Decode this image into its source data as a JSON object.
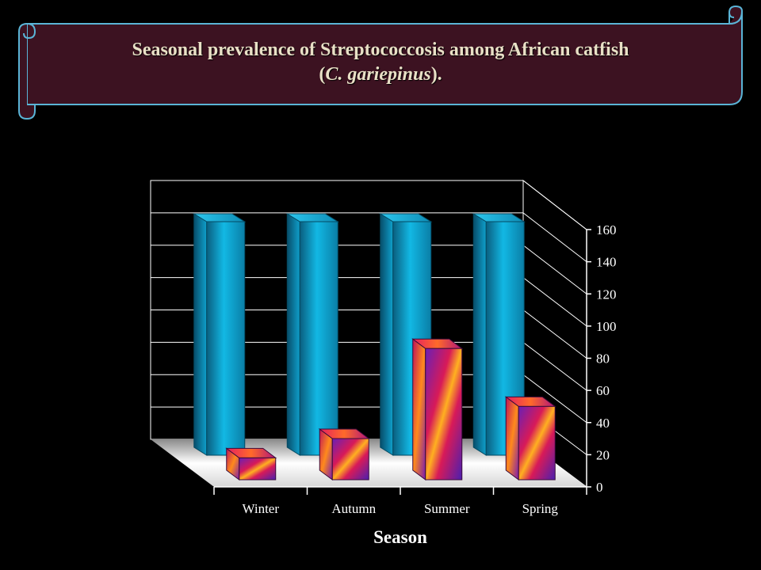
{
  "title": {
    "line1": "Seasonal prevalence of Streptococcosis among African catfish",
    "line2_open": "(",
    "line2_species": "C. gariepinus",
    "line2_close": ")."
  },
  "chart_data": {
    "type": "bar",
    "title": "Seasonal prevalence of Streptococcosis among African catfish (C. gariepinus).",
    "xlabel": "Season",
    "ylabel": "",
    "categories": [
      "Winter",
      "Autumn",
      "Summer",
      "Spring"
    ],
    "series": [
      {
        "values": [
          20,
          32,
          88,
          52
        ],
        "row": "front"
      },
      {
        "values": [
          160,
          160,
          160,
          160
        ],
        "row": "back"
      }
    ],
    "ylim": [
      0,
      160
    ],
    "yticks": [
      0,
      20,
      40,
      60,
      80,
      100,
      120,
      140,
      160
    ],
    "grid": true,
    "legend": "none",
    "colors": {
      "back_series": "#0aa3cf",
      "front_series": "#c8147a",
      "floor": "#ffffff",
      "walls": "#000000",
      "gridlines": "#ffffff"
    }
  },
  "banner": {
    "fill": "#3c1221",
    "stroke": "#5ab4d6"
  }
}
